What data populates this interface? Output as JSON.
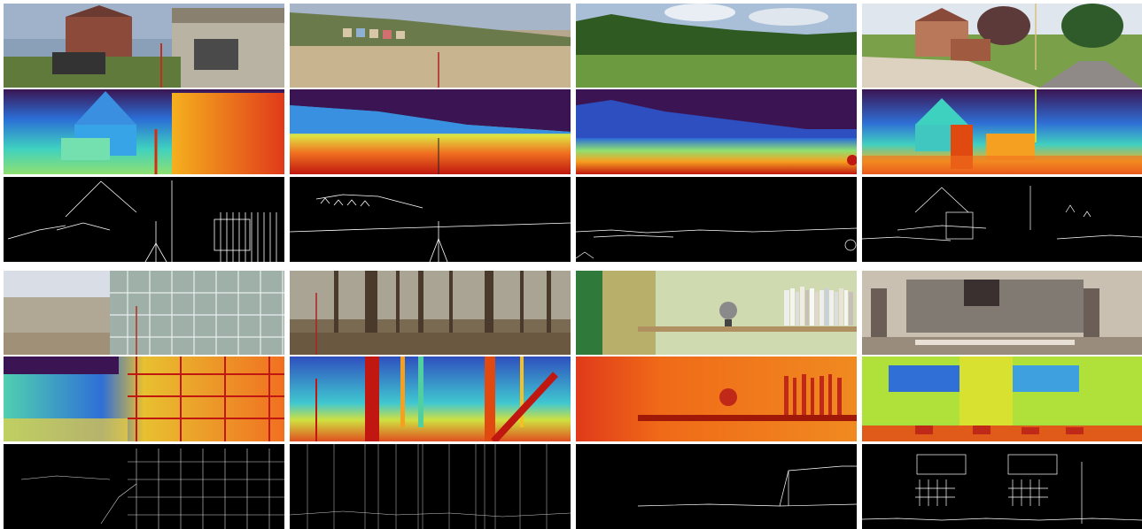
{
  "figure": {
    "rows": [
      {
        "scenes": [
          {
            "name": "house-shed",
            "modalities": [
              "rgb",
              "depth",
              "edges"
            ]
          },
          {
            "name": "beach-huts",
            "modalities": [
              "rgb",
              "depth",
              "edges"
            ]
          },
          {
            "name": "field",
            "modalities": [
              "rgb",
              "depth",
              "edges"
            ]
          },
          {
            "name": "brick-house-road",
            "modalities": [
              "rgb",
              "depth",
              "edges"
            ]
          }
        ]
      },
      {
        "scenes": [
          {
            "name": "greenhouse",
            "modalities": [
              "rgb",
              "depth",
              "edges"
            ]
          },
          {
            "name": "forest",
            "modalities": [
              "rgb",
              "depth",
              "edges"
            ]
          },
          {
            "name": "bookshelf",
            "modalities": [
              "rgb",
              "depth",
              "edges"
            ]
          },
          {
            "name": "office-room",
            "modalities": [
              "rgb",
              "depth",
              "edges"
            ]
          }
        ]
      }
    ],
    "colors": {
      "depth_far": "#3b1553",
      "depth_mid": "#2fb3c7",
      "depth_near": "#e03a1a",
      "edges_bg": "#000000",
      "edges_line": "#ffffff"
    }
  }
}
